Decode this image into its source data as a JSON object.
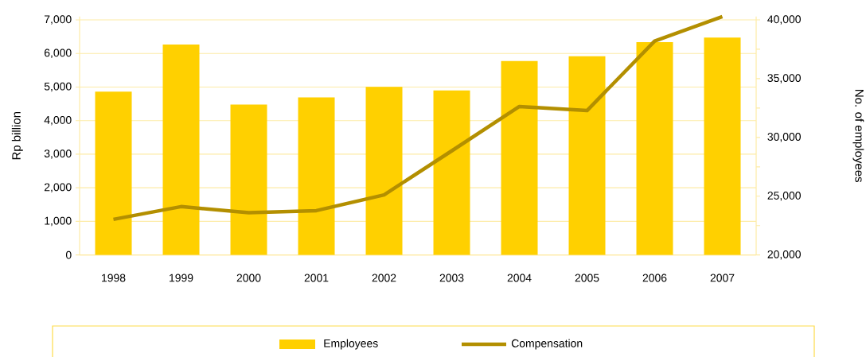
{
  "chart_data": {
    "type": "bar",
    "categories": [
      "1998",
      "1999",
      "2000",
      "2001",
      "2002",
      "2003",
      "2004",
      "2005",
      "2006",
      "2007"
    ],
    "ylabel": "Rp billion",
    "y2label": "No. of employees",
    "series": [
      {
        "name": "Employees",
        "axis": "y2",
        "color": "#ffd000",
        "values": [
          33900,
          37900,
          32800,
          33400,
          34300,
          34000,
          36500,
          36900,
          38100,
          38500
        ]
      },
      {
        "name": "Compensation",
        "type": "line",
        "axis": "y",
        "color": "#b38f00",
        "values": [
          1060,
          1440,
          1260,
          1320,
          1790,
          3100,
          4420,
          4300,
          6370,
          7100
        ]
      }
    ],
    "ylim": [
      0,
      7100
    ],
    "yticks": [
      {
        "value": 0,
        "label": "0"
      },
      {
        "value": 1000,
        "label": "1,000"
      },
      {
        "value": 2000,
        "label": "2,000"
      },
      {
        "value": 3000,
        "label": "3,000"
      },
      {
        "value": 4000,
        "label": "4,000"
      },
      {
        "value": 5000,
        "label": "5,000"
      },
      {
        "value": 6000,
        "label": "6,000"
      },
      {
        "value": 7000,
        "label": "7,000"
      }
    ],
    "y2lim": [
      20000,
      40286
    ],
    "y2ticks": [
      {
        "value": 20000,
        "label": "20,000"
      },
      {
        "value": 22500,
        "label": null
      },
      {
        "value": 25000,
        "label": "25,000"
      },
      {
        "value": 27500,
        "label": null
      },
      {
        "value": 30000,
        "label": "30,000"
      },
      {
        "value": 32500,
        "label": null
      },
      {
        "value": 35000,
        "label": "35,000"
      },
      {
        "value": 37500,
        "label": null
      },
      {
        "value": 40000,
        "label": "40,000"
      }
    ],
    "grid": "y",
    "legend": "bottom"
  }
}
